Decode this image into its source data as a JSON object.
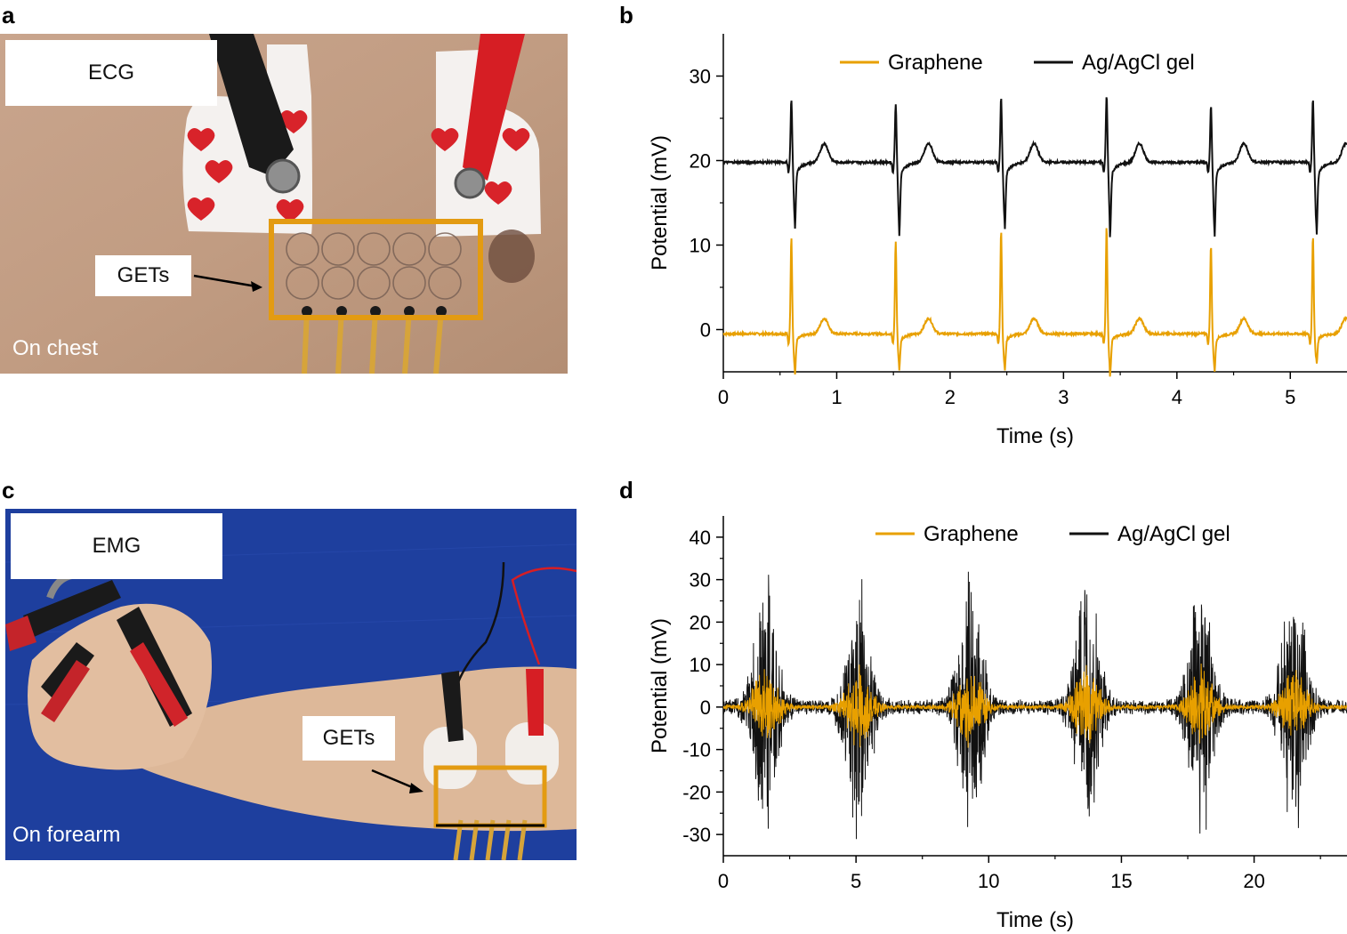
{
  "panels": {
    "a": {
      "letter": "a",
      "label": "ECG",
      "gets_label": "GETs",
      "location": "On chest"
    },
    "c": {
      "letter": "c",
      "label": "EMG",
      "gets_label": "GETs",
      "location": "On forearm"
    }
  },
  "colors": {
    "graphene": "#E8A000",
    "agagcl": "#111111",
    "highlight_box": "#E39B12",
    "skin": "#C4A087",
    "blue_cloth": "#1E3F9E"
  },
  "chart_data": [
    {
      "panel": "b",
      "type": "line",
      "xlabel": "Time (s)",
      "ylabel": "Potential (mV)",
      "xlim": [
        0,
        5.5
      ],
      "ylim": [
        -5,
        35
      ],
      "xticks": [
        0,
        1,
        2,
        3,
        4,
        5
      ],
      "yticks": [
        0,
        10,
        20,
        30
      ],
      "legend_position": "top",
      "series": [
        {
          "name": "Graphene",
          "color_key": "graphene",
          "baseline": -0.5,
          "beats": [
            0.6,
            1.52,
            2.45,
            3.38,
            4.3,
            5.2
          ],
          "peaks": [
            11.0,
            10.5,
            11.8,
            12.2,
            10.0,
            11.2
          ],
          "troughs": [
            -4.5,
            -4.0,
            -4.2,
            -4.5,
            -4.3,
            -3.5
          ],
          "twave": 1.3
        },
        {
          "name": "Ag/AgCl gel",
          "color_key": "agagcl",
          "baseline": 19.8,
          "beats": [
            0.6,
            1.52,
            2.45,
            3.38,
            4.3,
            5.2
          ],
          "peaks": [
            27.3,
            26.8,
            27.5,
            27.8,
            26.5,
            27.3
          ],
          "troughs": [
            13.2,
            12.6,
            13.1,
            12.8,
            12.3,
            12.5
          ],
          "twave": 22.0
        }
      ]
    },
    {
      "panel": "d",
      "type": "line",
      "xlabel": "Time (s)",
      "ylabel": "Potential (mV)",
      "xlim": [
        0,
        23.5
      ],
      "ylim": [
        -35,
        45
      ],
      "xticks": [
        0,
        5,
        10,
        15,
        20
      ],
      "yticks": [
        -30,
        -20,
        -10,
        0,
        10,
        20,
        30,
        40
      ],
      "legend_position": "top",
      "series": [
        {
          "name": "Graphene",
          "color_key": "graphene",
          "bursts": [
            1.6,
            5.1,
            9.3,
            13.7,
            18.0,
            21.5
          ],
          "amplitude": 10
        },
        {
          "name": "Ag/AgCl gel",
          "color_key": "agagcl",
          "bursts": [
            1.6,
            5.1,
            9.3,
            13.7,
            18.0,
            21.5
          ],
          "amplitude": 32
        }
      ]
    }
  ]
}
